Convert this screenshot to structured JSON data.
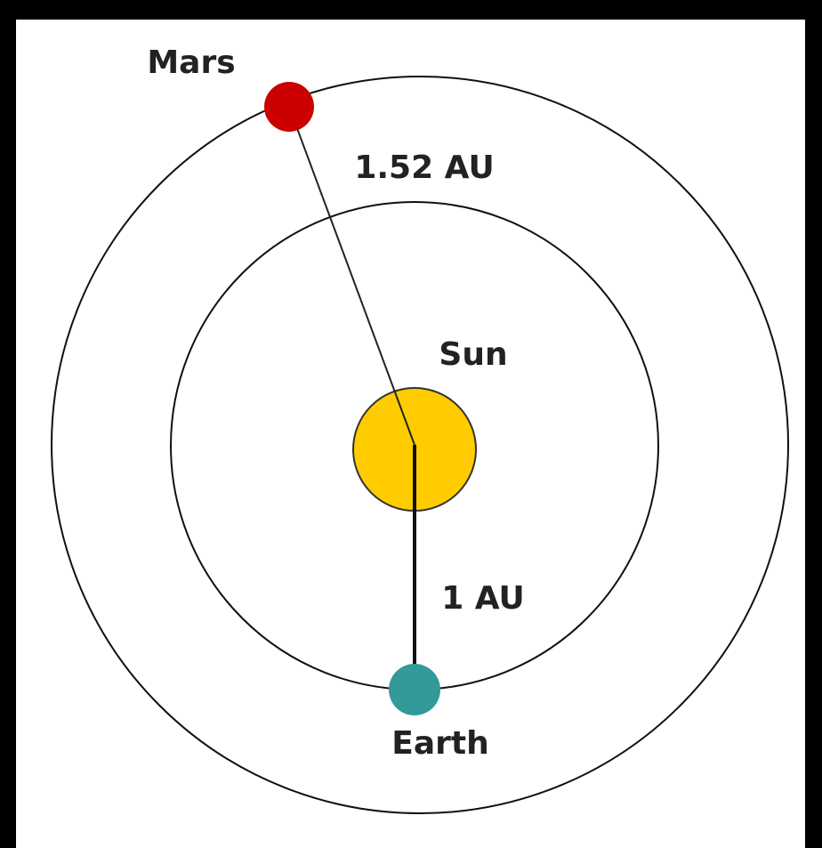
{
  "nodes": [
    {
      "label": "Mars"
    },
    {
      "label": "Sun"
    },
    {
      "label": "Earth"
    }
  ],
  "edges": [
    {
      "label": "1.52 AU"
    },
    {
      "label": "1 AU"
    }
  ]
}
